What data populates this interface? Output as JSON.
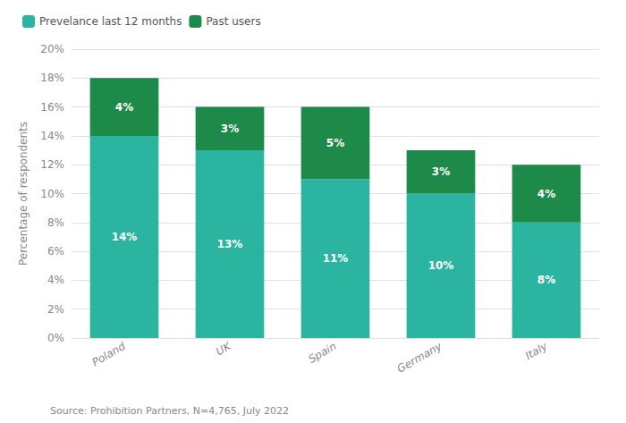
{
  "chart_data": {
    "type": "bar",
    "stacked": true,
    "categories": [
      "Poland",
      "UK",
      "Spain",
      "Germany",
      "Italy"
    ],
    "series": [
      {
        "name": "Prevelance last 12 months",
        "color": "#2bb5a0",
        "values": [
          14,
          13,
          11,
          10,
          8
        ],
        "value_labels": [
          "14%",
          "13%",
          "11%",
          "10%",
          "8%"
        ]
      },
      {
        "name": "Past users",
        "color": "#1e8a4a",
        "values": [
          4,
          3,
          5,
          3,
          4
        ],
        "value_labels": [
          "4%",
          "3%",
          "5%",
          "3%",
          "4%"
        ]
      }
    ],
    "data_labels": true,
    "ylabel": "Percentage of respondents",
    "ylim": [
      0,
      20
    ],
    "yticks": [
      {
        "value": 0,
        "label": "0%"
      },
      {
        "value": 2,
        "label": "2%"
      },
      {
        "value": 4,
        "label": "4%"
      },
      {
        "value": 6,
        "label": "6%"
      },
      {
        "value": 8,
        "label": "8%"
      },
      {
        "value": 10,
        "label": "10%"
      },
      {
        "value": 12,
        "label": "12%"
      },
      {
        "value": 14,
        "label": "14%"
      },
      {
        "value": 16,
        "label": "16%"
      },
      {
        "value": 18,
        "label": "18%"
      },
      {
        "value": 20,
        "label": "20%"
      }
    ],
    "grid": true,
    "legend": "upper left",
    "annotations": [
      "Source: Prohibition Partners, N=4,765, July 2022"
    ]
  }
}
